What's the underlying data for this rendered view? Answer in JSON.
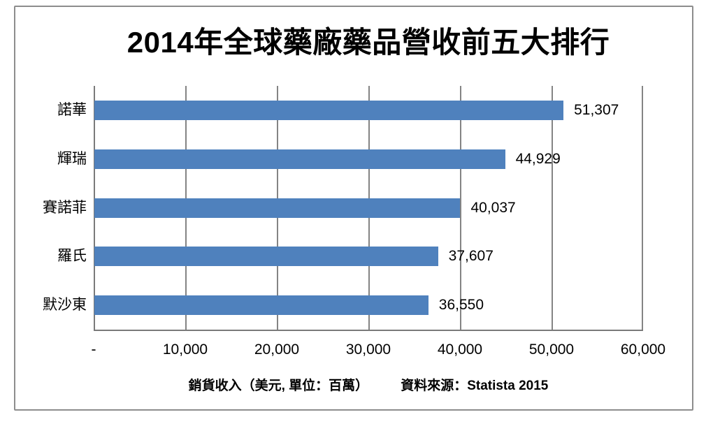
{
  "chart_data": {
    "type": "bar",
    "orientation": "horizontal",
    "title": "2014年全球藥廠藥品營收前五大排行",
    "categories": [
      "諾華",
      "輝瑞",
      "賽諾菲",
      "羅氏",
      "默沙東"
    ],
    "values": [
      51307,
      44929,
      40037,
      37607,
      36550
    ],
    "value_labels": [
      "51,307",
      "44,929",
      "40,037",
      "37,607",
      "36,550"
    ],
    "xlim": [
      0,
      60000
    ],
    "x_ticks": [
      0,
      10000,
      20000,
      30000,
      40000,
      50000,
      60000
    ],
    "x_tick_labels": [
      "-",
      "10,000",
      "20,000",
      "30,000",
      "40,000",
      "50,000",
      "60,000"
    ],
    "xlabel": "銷貨收入（美元, 單位：百萬）",
    "source": "資料來源：Statista 2015",
    "grid": true,
    "legend": false,
    "colors": {
      "bar": "#4f81bd",
      "gridline": "#848484",
      "axis": "#7a7a7a",
      "frame_border": "#8d8d8d",
      "text": "#000000"
    }
  }
}
